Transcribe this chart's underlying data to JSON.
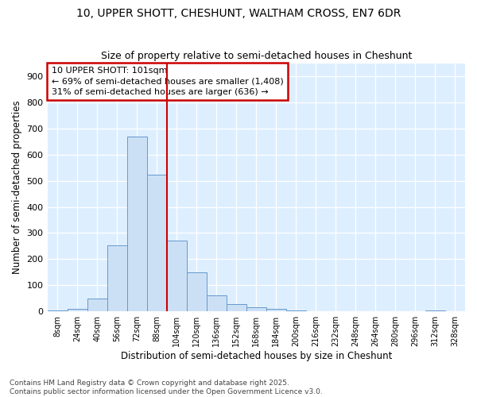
{
  "title": "10, UPPER SHOTT, CHESHUNT, WALTHAM CROSS, EN7 6DR",
  "subtitle": "Size of property relative to semi-detached houses in Cheshunt",
  "xlabel": "Distribution of semi-detached houses by size in Cheshunt",
  "ylabel": "Number of semi-detached properties",
  "categories": [
    "8sqm",
    "24sqm",
    "40sqm",
    "56sqm",
    "72sqm",
    "88sqm",
    "104sqm",
    "120sqm",
    "136sqm",
    "152sqm",
    "168sqm",
    "184sqm",
    "200sqm",
    "216sqm",
    "232sqm",
    "248sqm",
    "264sqm",
    "280sqm",
    "296sqm",
    "312sqm",
    "328sqm"
  ],
  "values": [
    5,
    10,
    50,
    254,
    670,
    524,
    270,
    150,
    60,
    28,
    15,
    10,
    3,
    0,
    0,
    0,
    0,
    0,
    0,
    4,
    0
  ],
  "bar_color": "#cce0f5",
  "bar_edge_color": "#6699cc",
  "vline_color": "#cc0000",
  "annotation_title": "10 UPPER SHOTT: 101sqm",
  "annotation_line1": "← 69% of semi-detached houses are smaller (1,408)",
  "annotation_line2": "31% of semi-detached houses are larger (636) →",
  "annotation_box_color": "#cc0000",
  "background_color": "#ffffff",
  "plot_bg_color": "#ddeeff",
  "footer_line1": "Contains HM Land Registry data © Crown copyright and database right 2025.",
  "footer_line2": "Contains public sector information licensed under the Open Government Licence v3.0.",
  "ylim": [
    0,
    950
  ],
  "yticks": [
    0,
    100,
    200,
    300,
    400,
    500,
    600,
    700,
    800,
    900
  ]
}
